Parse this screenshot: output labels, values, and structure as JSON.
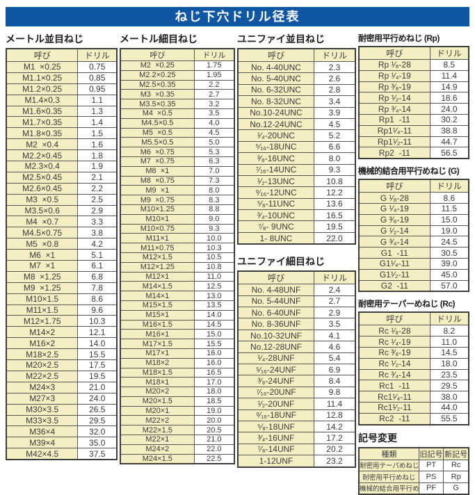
{
  "title": "ねじ下穴ドリル径表",
  "colors": {
    "banner_blue": "#0f57a5",
    "cell_cream": "#f3efc3",
    "grid": "#555555",
    "text": "#3a3a3a"
  },
  "sections": {
    "metric_coarse": {
      "title": "メートル並目ねじ",
      "headers": [
        "呼び",
        "ドリル"
      ],
      "rows": [
        [
          "M1  ×0.25",
          "0.75"
        ],
        [
          "M1.1×0.25",
          "0.85"
        ],
        [
          "M1.2×0.25",
          "0.95"
        ],
        [
          "M1.4×0.3",
          "1.1"
        ],
        [
          "M1.6×0.35",
          "1.3"
        ],
        [
          "M1.7×0.35",
          "1.4"
        ],
        [
          "M1.8×0.35",
          "1.5"
        ],
        [
          "M2  ×0.4",
          "1.6"
        ],
        [
          "M2.2×0.45",
          "1.8"
        ],
        [
          "M2.3×0.4",
          "1.9"
        ],
        [
          "M2.5×0.45",
          "2.1"
        ],
        [
          "M2.6×0.45",
          "2.2"
        ],
        [
          "M3  ×0.5",
          "2.5"
        ],
        [
          "M3.5×0.6",
          "2.9"
        ],
        [
          "M4  ×0.7",
          "3.3"
        ],
        [
          "M4.5×0.75",
          "3.8"
        ],
        [
          "M5  ×0.8",
          "4.2"
        ],
        [
          "M6  ×1",
          "5.1"
        ],
        [
          "M7  ×1",
          "6.1"
        ],
        [
          "M8  ×1.25",
          "6.8"
        ],
        [
          "M9  ×1.25",
          "7.8"
        ],
        [
          "M10×1.5",
          "8.6"
        ],
        [
          "M11×1.5",
          "9.6"
        ],
        [
          "M12×1.75",
          "10.3"
        ],
        [
          "M14×2",
          "12.1"
        ],
        [
          "M16×2",
          "14.0"
        ],
        [
          "M18×2.5",
          "15.5"
        ],
        [
          "M20×2.5",
          "17.5"
        ],
        [
          "M22×2.5",
          "19.5"
        ],
        [
          "M24×3",
          "21.0"
        ],
        [
          "M27×3",
          "24.0"
        ],
        [
          "M30×3.5",
          "26.5"
        ],
        [
          "M33×3.5",
          "29.5"
        ],
        [
          "M36×4",
          "32.0"
        ],
        [
          "M39×4",
          "35.0"
        ],
        [
          "M42×4.5",
          "37.5"
        ]
      ]
    },
    "metric_fine": {
      "title": "メートル細目ねじ",
      "headers": [
        "呼び",
        "ドリル"
      ],
      "rows": [
        [
          "M2  ×0.25",
          "1.75"
        ],
        [
          "M2.2×0.25",
          "1.95"
        ],
        [
          "M2.5×0.35",
          "2.2"
        ],
        [
          "M3  ×0.35",
          "2.7"
        ],
        [
          "M3.5×0.35",
          "3.2"
        ],
        [
          "M4  ×0.5",
          "3.5"
        ],
        [
          "M4.5×0.5",
          "4.0"
        ],
        [
          "M5  ×0.5",
          "4.5"
        ],
        [
          "M5.5×0.5",
          "5.0"
        ],
        [
          "M6  ×0.75",
          "5.3"
        ],
        [
          "M7  ×0.75",
          "6.3"
        ],
        [
          "M8  ×1",
          "7.0"
        ],
        [
          "M8  ×0.75",
          "7.3"
        ],
        [
          "M9  ×1",
          "8.0"
        ],
        [
          "M9  ×0.75",
          "8.3"
        ],
        [
          "M10×1.25",
          "8.8"
        ],
        [
          "M10×1",
          "9.0"
        ],
        [
          "M10×0.75",
          "9.3"
        ],
        [
          "M11×1",
          "10.0"
        ],
        [
          "M11×0.75",
          "10.3"
        ],
        [
          "M12×1.5",
          "10.5"
        ],
        [
          "M12×1.25",
          "10.8"
        ],
        [
          "M12×1",
          "11.0"
        ],
        [
          "M14×1.5",
          "12.5"
        ],
        [
          "M14×1",
          "13.0"
        ],
        [
          "M15×1.5",
          "13.5"
        ],
        [
          "M15×1",
          "14.0"
        ],
        [
          "M16×1.5",
          "14.5"
        ],
        [
          "M16×1",
          "15.0"
        ],
        [
          "M17×1.5",
          "15.5"
        ],
        [
          "M17×1",
          "16.0"
        ],
        [
          "M18×2",
          "16.0"
        ],
        [
          "M18×1.5",
          "16.5"
        ],
        [
          "M18×1",
          "17.0"
        ],
        [
          "M20×2",
          "18.0"
        ],
        [
          "M20×1.5",
          "18.5"
        ],
        [
          "M20×1",
          "19.0"
        ],
        [
          "M22×2",
          "20.0"
        ],
        [
          "M22×1.5",
          "20.5"
        ],
        [
          "M22×1",
          "21.0"
        ],
        [
          "M24×2",
          "22.0"
        ],
        [
          "M24×1.5",
          "22.5"
        ]
      ]
    },
    "unified_coarse": {
      "title": "ユニファイ並目ねじ",
      "headers": [
        "呼び",
        "ドリル"
      ],
      "rows": [
        [
          "No. 4-40UNC",
          "2.3"
        ],
        [
          "No. 5-40UNC",
          "2.6"
        ],
        [
          "No. 6-32UNC",
          "2.8"
        ],
        [
          "No. 8-32UNC",
          "3.4"
        ],
        [
          "No.10-24UNC",
          "3.9"
        ],
        [
          "No.12-24UNC",
          "4.5"
        ],
        [
          "¹⁄₄-20UNC",
          "5.2"
        ],
        [
          "⁵⁄₁₆-18UNC",
          "6.6"
        ],
        [
          "³⁄₈-16UNC",
          "8.0"
        ],
        [
          "⁷⁄₁₆-14UNC",
          "9.3"
        ],
        [
          "¹⁄₂-13UNC",
          "10.8"
        ],
        [
          "⁹⁄₁₆-12UNC",
          "12.2"
        ],
        [
          "⁵⁄₈-11UNC",
          "13.6"
        ],
        [
          "³⁄₄-10UNC",
          "16.5"
        ],
        [
          "⁷⁄₈- 9UNC",
          "19.5"
        ],
        [
          "1- 8UNC",
          "22.0"
        ]
      ]
    },
    "unified_fine": {
      "title": "ユニファイ細目ねじ",
      "headers": [
        "呼び",
        "ドリル"
      ],
      "rows": [
        [
          "No. 4-48UNF",
          "2.4"
        ],
        [
          "No. 5-44UNF",
          "2.7"
        ],
        [
          "No. 6-40UNF",
          "2.9"
        ],
        [
          "No. 8-36UNF",
          "3.5"
        ],
        [
          "No.10-32UNF",
          "4.1"
        ],
        [
          "No.12-28UNF",
          "4.6"
        ],
        [
          "¹⁄₄-28UNF",
          "5.4"
        ],
        [
          "⁵⁄₁₆-24UNF",
          "6.9"
        ],
        [
          "³⁄₈-24UNF",
          "8.4"
        ],
        [
          "⁷⁄₁₆-20UNF",
          "9.8"
        ],
        [
          "¹⁄₂-20UNF",
          "11.4"
        ],
        [
          "⁹⁄₁₆-18UNF",
          "12.8"
        ],
        [
          "⁵⁄₈-18UNF",
          "14.2"
        ],
        [
          "³⁄₄-16UNF",
          "17.2"
        ],
        [
          "⁷⁄₈-14UNF",
          "20.2"
        ],
        [
          "1-12UNF",
          "23.2"
        ]
      ]
    },
    "rp": {
      "title": "耐密用平行めねじ (Rp)",
      "headers": [
        "呼び",
        "ドリル"
      ],
      "rows": [
        [
          "Rp ¹⁄₈-28",
          "8.5"
        ],
        [
          "Rp ¹⁄₄-19",
          "11.4"
        ],
        [
          "Rp ³⁄₈-19",
          "14.9"
        ],
        [
          "Rp ¹⁄₂-14",
          "18.6"
        ],
        [
          "Rp ³⁄₄-14",
          "24.0"
        ],
        [
          "Rp1  -11",
          "30.2"
        ],
        [
          "Rp1¹⁄₄-11",
          "38.8"
        ],
        [
          "Rp1¹⁄₂-11",
          "44.7"
        ],
        [
          "Rp2  -11",
          "56.5"
        ]
      ]
    },
    "g": {
      "title": "機械的結合用平行めねじ (G)",
      "headers": [
        "呼び",
        "ドリル"
      ],
      "rows": [
        [
          "G ¹⁄₈-28",
          "8.6"
        ],
        [
          "G ¹⁄₄-19",
          "11.5"
        ],
        [
          "G ³⁄₈-19",
          "15.0"
        ],
        [
          "G ¹⁄₂-14",
          "19.0"
        ],
        [
          "G ³⁄₄-14",
          "24.5"
        ],
        [
          "G1  -11",
          "30.5"
        ],
        [
          "G1¹⁄₄-11",
          "39.0"
        ],
        [
          "G1¹⁄₂-11",
          "45.0"
        ],
        [
          "G2  -11",
          "57.0"
        ]
      ]
    },
    "rc": {
      "title": "耐密用テーパーめねじ (Rc)",
      "headers": [
        "呼び",
        "ドリル"
      ],
      "rows": [
        [
          "Rc ¹⁄₈-28",
          "8.2"
        ],
        [
          "Rc ¹⁄₄-19",
          "11.0"
        ],
        [
          "Rc ³⁄₈-19",
          "14.5"
        ],
        [
          "Rc ¹⁄₂-14",
          "18.0"
        ],
        [
          "Rc ³⁄₄-14",
          "23.5"
        ],
        [
          "Rc1  -11",
          "29.5"
        ],
        [
          "Rc1¹⁄₄-11",
          "38.0"
        ],
        [
          "Rc1¹⁄₂-11",
          "44.0"
        ],
        [
          "Rc2  -11",
          "55.5"
        ]
      ]
    },
    "symbol_change": {
      "title": "記号変更",
      "headers": [
        "種類",
        "旧記号",
        "新記号"
      ],
      "rows": [
        [
          "耐密用テーパめねじ",
          "PT",
          "Rc"
        ],
        [
          "耐密用平行めねじ",
          "PS",
          "Rp"
        ],
        [
          "機械的結合用平行めねじ",
          "PF",
          "G"
        ]
      ]
    }
  }
}
